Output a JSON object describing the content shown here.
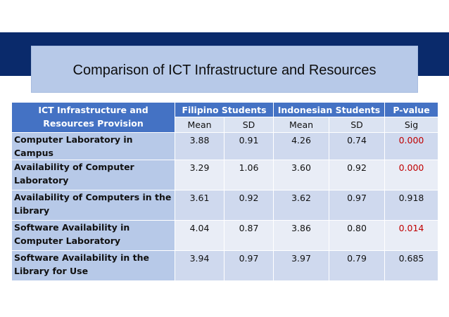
{
  "slide": {
    "title": "Comparison of ICT Infrastructure and Resources"
  },
  "table": {
    "header": {
      "row_head": "ICT Infrastructure and Resources Provision",
      "group1": "Filipino Students",
      "group2": "Indonesian Students",
      "group3": "P-value",
      "sub": [
        "Mean",
        "SD",
        "Mean",
        "SD",
        "Sig"
      ]
    },
    "rows": [
      {
        "label": "Computer Laboratory in Campus",
        "values": [
          "3.88",
          "0.91",
          "4.26",
          "0.74",
          "0.000"
        ]
      },
      {
        "label": "Availability of Computer Laboratory",
        "values": [
          "3.29",
          "1.06",
          "3.60",
          "0.92",
          "0.000"
        ]
      },
      {
        "label": "Availability of Computers in the Library",
        "values": [
          "3.61",
          "0.92",
          "3.62",
          "0.97",
          "0.918"
        ]
      },
      {
        "label": "Software Availability in Computer Laboratory",
        "values": [
          "4.04",
          "0.87",
          "3.86",
          "0.80",
          "0.014"
        ]
      },
      {
        "label": "Software Availability in the Library for Use",
        "values": [
          "3.94",
          "0.97",
          "3.97",
          "0.79",
          "0.685"
        ]
      }
    ],
    "significant_color": "#c00000"
  }
}
